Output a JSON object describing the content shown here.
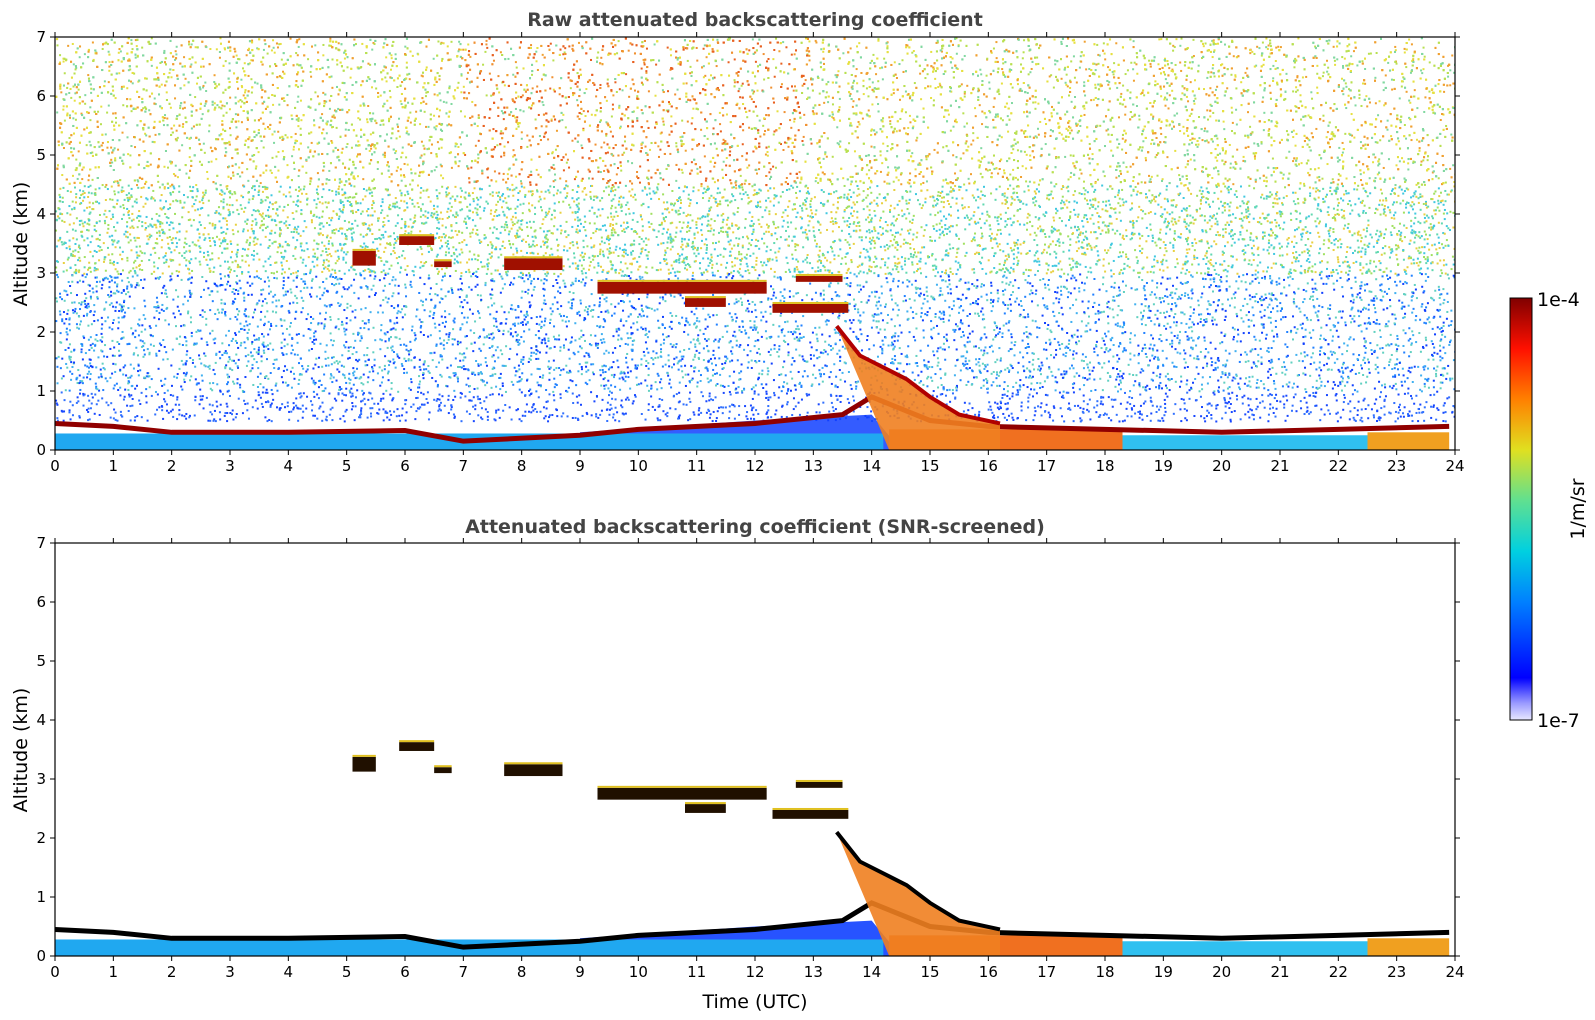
{
  "chart_data": [
    {
      "type": "heatmap",
      "title": "Raw attenuated backscattering coefficient",
      "xlabel": "",
      "ylabel": "Altitude (km)",
      "xlim": [
        0,
        24
      ],
      "ylim": [
        0,
        7
      ],
      "xticks": [
        "0",
        "1",
        "2",
        "3",
        "4",
        "5",
        "6",
        "7",
        "8",
        "9",
        "10",
        "11",
        "12",
        "13",
        "14",
        "15",
        "16",
        "17",
        "18",
        "19",
        "20",
        "21",
        "22",
        "23",
        "24"
      ],
      "yticks": [
        "0",
        "1",
        "2",
        "3",
        "4",
        "5",
        "6",
        "7"
      ],
      "background": "noisy"
    },
    {
      "type": "heatmap",
      "title": "Attenuated backscattering coefficient (SNR-screened)",
      "xlabel": "Time (UTC)",
      "ylabel": "Altitude (km)",
      "xlim": [
        0,
        24
      ],
      "ylim": [
        0,
        7
      ],
      "xticks": [
        "0",
        "1",
        "2",
        "3",
        "4",
        "5",
        "6",
        "7",
        "8",
        "9",
        "10",
        "11",
        "12",
        "13",
        "14",
        "15",
        "16",
        "17",
        "18",
        "19",
        "20",
        "21",
        "22",
        "23",
        "24"
      ],
      "yticks": [
        "0",
        "1",
        "2",
        "3",
        "4",
        "5",
        "6",
        "7"
      ],
      "background": "screened"
    }
  ],
  "colorbar": {
    "label": "1/m/sr",
    "max_label": "1e-4",
    "min_label": "1e-7",
    "scale": "log",
    "colormap": "jet"
  },
  "colors": {
    "title": "#444444",
    "low": "#0000ff",
    "high": "#8b0000"
  }
}
